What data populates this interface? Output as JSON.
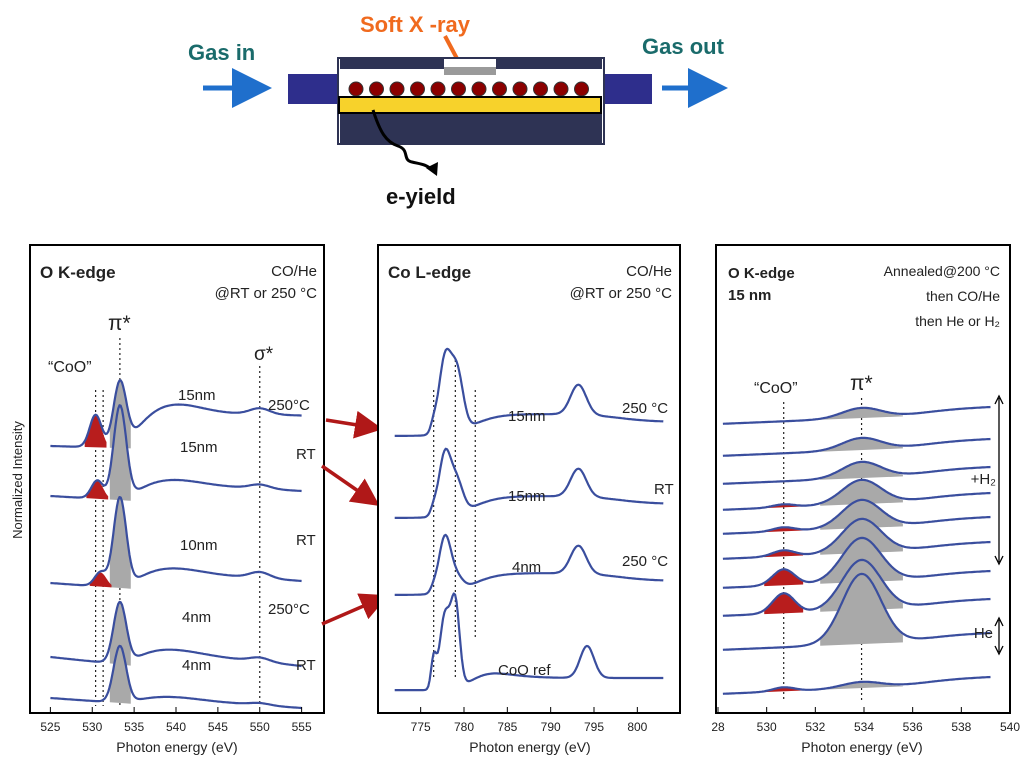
{
  "schematic": {
    "gas_in": "Gas in",
    "gas_out": "Gas out",
    "xray": "Soft X -ray",
    "eyield": "e-yield"
  },
  "panels": [
    {
      "title": "O K-edge",
      "condition_line1": "CO/He",
      "condition_line2": "@RT or 250 °C",
      "peak_labels": [
        "“CoO”",
        "π*",
        "σ*"
      ],
      "trace_labels": [
        {
          "size": "15nm",
          "temp": "250°C"
        },
        {
          "size": "15nm",
          "temp": "RT"
        },
        {
          "size": "10nm",
          "temp": "RT"
        },
        {
          "size": "4nm",
          "temp": "250°C"
        },
        {
          "size": "4nm",
          "temp": "RT"
        }
      ],
      "xticks": [
        "525",
        "530",
        "535",
        "540",
        "545",
        "550",
        "555"
      ],
      "xlabel": "Photon energy (eV)",
      "ylabel": "Normalized Intensity"
    },
    {
      "title": "Co L-edge",
      "condition_line1": "CO/He",
      "condition_line2": "@RT or 250 °C",
      "trace_labels": [
        {
          "size": "15nm",
          "temp": "250 °C"
        },
        {
          "size": "15nm",
          "temp": "RT"
        },
        {
          "size": "4nm",
          "temp": "250 °C"
        },
        {
          "size": "CoO ref",
          "temp": ""
        }
      ],
      "xticks": [
        "775",
        "780",
        "785",
        "790",
        "795",
        "800"
      ],
      "xlabel": "Photon energy (eV)"
    },
    {
      "title_line1": "O K-edge",
      "title_line2": "15 nm",
      "condition_line1": "Annealed@200 °C",
      "condition_line2": "then CO/He",
      "condition_line3": "then He or H₂",
      "peak_labels": [
        "“CoO”",
        "π*"
      ],
      "bracket_labels": [
        "+H₂",
        "He"
      ],
      "xticks": [
        "28",
        "530",
        "532",
        "534",
        "536",
        "538",
        "540"
      ],
      "xlabel": "Photon energy (eV)"
    }
  ],
  "chart_data": [
    {
      "type": "line",
      "xlabel": "Photon energy (eV)",
      "ylabel": "Normalized Intensity",
      "xlim": [
        524,
        556
      ],
      "series": [
        {
          "name": "15nm 250°C",
          "peaks": [
            {
              "x": 530.4,
              "h": 0.55
            },
            {
              "x": 533.3,
              "h": 1.0
            }
          ]
        },
        {
          "name": "15nm RT",
          "peaks": [
            {
              "x": 530.6,
              "h": 0.3
            },
            {
              "x": 533.3,
              "h": 1.0
            }
          ]
        },
        {
          "name": "10nm RT",
          "peaks": [
            {
              "x": 531.0,
              "h": 0.25
            },
            {
              "x": 533.3,
              "h": 1.0
            }
          ]
        },
        {
          "name": "4nm 250°C",
          "peaks": [
            {
              "x": 533.3,
              "h": 0.8
            }
          ]
        },
        {
          "name": "4nm RT",
          "peaks": [
            {
              "x": 533.3,
              "h": 0.75
            }
          ]
        }
      ]
    },
    {
      "type": "line",
      "xlabel": "Photon energy (eV)",
      "xlim": [
        771,
        804
      ],
      "series": [
        {
          "name": "15nm 250 °C",
          "peaks": [
            {
              "x": 777.8,
              "h": 1.0
            },
            {
              "x": 779.2,
              "h": 0.85
            },
            {
              "x": 793.2,
              "h": 0.3
            }
          ]
        },
        {
          "name": "15nm RT",
          "peaks": [
            {
              "x": 777.8,
              "h": 0.95
            },
            {
              "x": 779.2,
              "h": 0.6
            },
            {
              "x": 793.2,
              "h": 0.3
            }
          ]
        },
        {
          "name": "4nm 250 °C",
          "peaks": [
            {
              "x": 777.8,
              "h": 0.85
            },
            {
              "x": 793.2,
              "h": 0.3
            }
          ]
        },
        {
          "name": "CoO ref",
          "peaks": [
            {
              "x": 776.5,
              "h": 0.4
            },
            {
              "x": 777.8,
              "h": 0.8
            },
            {
              "x": 779.0,
              "h": 0.9
            },
            {
              "x": 794.2,
              "h": 0.35
            }
          ]
        }
      ]
    },
    {
      "type": "line",
      "xlabel": "Photon energy (eV)",
      "xlim": [
        528,
        540
      ],
      "series_count": 10,
      "peaks": [
        {
          "x": 530.7
        },
        {
          "x": 533.9
        }
      ]
    }
  ]
}
